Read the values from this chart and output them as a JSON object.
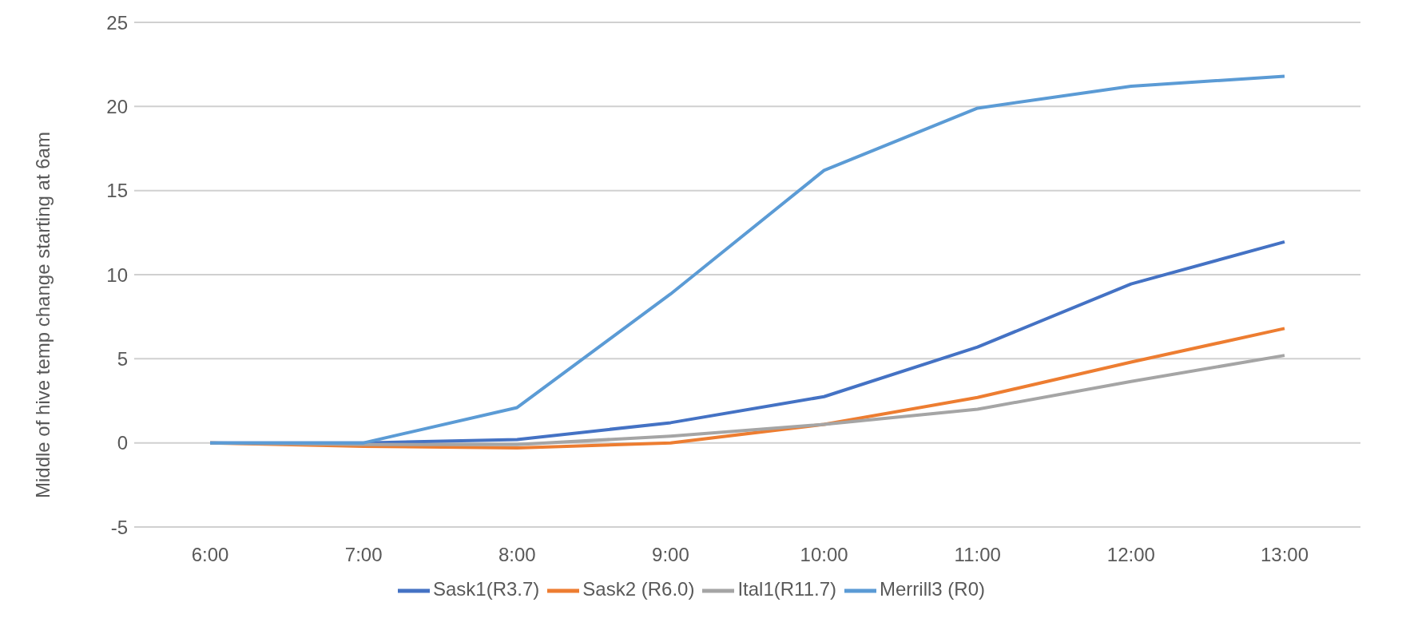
{
  "chart_data": {
    "type": "line",
    "ylabel": "Middle of hive temp change starting at 6am",
    "categories": [
      "6:00",
      "7:00",
      "8:00",
      "9:00",
      "10:00",
      "11:00",
      "12:00",
      "13:00"
    ],
    "series": [
      {
        "name": "Sask1(R3.7)",
        "color": "#4472c4",
        "values": [
          0,
          0,
          0.2,
          1.2,
          2.75,
          5.7,
          9.45,
          11.95
        ]
      },
      {
        "name": "Sask2 (R6.0)",
        "color": "#ed7d31",
        "values": [
          0,
          -0.2,
          -0.3,
          0,
          1.1,
          2.7,
          4.8,
          6.8
        ]
      },
      {
        "name": "Ital1(R11.7)",
        "color": "#a5a5a5",
        "values": [
          0,
          -0.1,
          -0.1,
          0.4,
          1.1,
          2.0,
          3.65,
          5.2
        ]
      },
      {
        "name": "Merrill3 (R0)",
        "color": "#5b9bd5",
        "values": [
          0,
          0,
          2.1,
          8.85,
          16.2,
          19.9,
          21.2,
          21.8
        ]
      }
    ],
    "ylim": [
      -5,
      25
    ],
    "yticks": [
      -5,
      0,
      5,
      10,
      15,
      20,
      25
    ],
    "grid": "y",
    "legend": "bottom",
    "marker": "none",
    "line_style": "solid"
  }
}
